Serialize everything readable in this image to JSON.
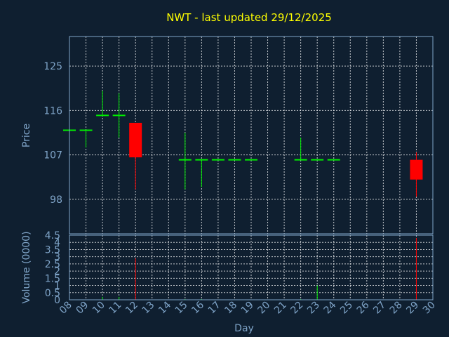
{
  "chart_data": [
    {
      "type": "candlestick",
      "title": "NWT - last updated 29/12/2025",
      "ylabel": "Price",
      "ylim": [
        91.0,
        131.0
      ],
      "yticks": [
        98,
        107,
        116,
        125
      ],
      "x_tick_labels": [
        "08",
        "09",
        "10",
        "11",
        "12",
        "13",
        "14",
        "15",
        "16",
        "17",
        "18",
        "19",
        "20",
        "21",
        "22",
        "23",
        "24",
        "25",
        "26",
        "27",
        "28",
        "29",
        "30"
      ],
      "grid": true,
      "up_color": "#00ee00",
      "down_color": "#ff0000",
      "candles": [
        {
          "day": "08",
          "open": 112.0,
          "high": 112.0,
          "low": 112.0,
          "close": 112.0
        },
        {
          "day": "09",
          "open": 112.0,
          "high": 112.0,
          "low": 108.5,
          "close": 112.0
        },
        {
          "day": "10",
          "open": 115.0,
          "high": 120.0,
          "low": 115.0,
          "close": 115.0
        },
        {
          "day": "11",
          "open": 115.0,
          "high": 119.5,
          "low": 110.5,
          "close": 115.0
        },
        {
          "day": "12",
          "open": 113.5,
          "high": 113.5,
          "low": 100.0,
          "close": 106.5
        },
        {
          "day": "15",
          "open": 106.0,
          "high": 111.5,
          "low": 100.0,
          "close": 106.0
        },
        {
          "day": "16",
          "open": 106.0,
          "high": 106.0,
          "low": 100.5,
          "close": 106.0
        },
        {
          "day": "17",
          "open": 106.0,
          "high": 106.0,
          "low": 106.0,
          "close": 106.0
        },
        {
          "day": "18",
          "open": 106.0,
          "high": 106.0,
          "low": 106.0,
          "close": 106.0
        },
        {
          "day": "19",
          "open": 106.0,
          "high": 106.0,
          "low": 106.0,
          "close": 106.0
        },
        {
          "day": "22",
          "open": 106.0,
          "high": 110.5,
          "low": 106.0,
          "close": 106.0
        },
        {
          "day": "23",
          "open": 106.0,
          "high": 106.0,
          "low": 106.0,
          "close": 106.0
        },
        {
          "day": "24",
          "open": 106.0,
          "high": 106.0,
          "low": 106.0,
          "close": 106.0
        },
        {
          "day": "29",
          "open": 106.0,
          "high": 107.5,
          "low": 98.5,
          "close": 102.0
        }
      ]
    },
    {
      "type": "bar",
      "xlabel": "Day",
      "ylabel": "Volume (0000)",
      "ylim": [
        0,
        4.5
      ],
      "yticks": [
        0,
        0.5,
        1,
        1.5,
        2,
        2.5,
        3,
        3.5,
        4,
        4.5
      ],
      "ytick_labels": [
        "0",
        "0.5",
        "1",
        "1.5",
        "2",
        "2.5",
        "3",
        "3.5",
        "4",
        "4.5"
      ],
      "x_tick_labels": [
        "08",
        "09",
        "10",
        "11",
        "12",
        "13",
        "14",
        "15",
        "16",
        "17",
        "18",
        "19",
        "20",
        "21",
        "22",
        "23",
        "24",
        "25",
        "26",
        "27",
        "28",
        "29",
        "30"
      ],
      "grid": true,
      "bars": [
        {
          "day": "08",
          "value": 0.01,
          "color": "#00ee00"
        },
        {
          "day": "09",
          "value": 0.01,
          "color": "#00ee00"
        },
        {
          "day": "10",
          "value": 0.2,
          "color": "#00ee00"
        },
        {
          "day": "11",
          "value": 0.2,
          "color": "#00ee00"
        },
        {
          "day": "12",
          "value": 2.9,
          "color": "#ff0000"
        },
        {
          "day": "15",
          "value": 0.05,
          "color": "#00ee00"
        },
        {
          "day": "16",
          "value": 0.05,
          "color": "#00ee00"
        },
        {
          "day": "22",
          "value": 0.05,
          "color": "#00ee00"
        },
        {
          "day": "23",
          "value": 1.0,
          "color": "#00ee00"
        },
        {
          "day": "29",
          "value": 4.3,
          "color": "#ff0000"
        }
      ]
    }
  ]
}
